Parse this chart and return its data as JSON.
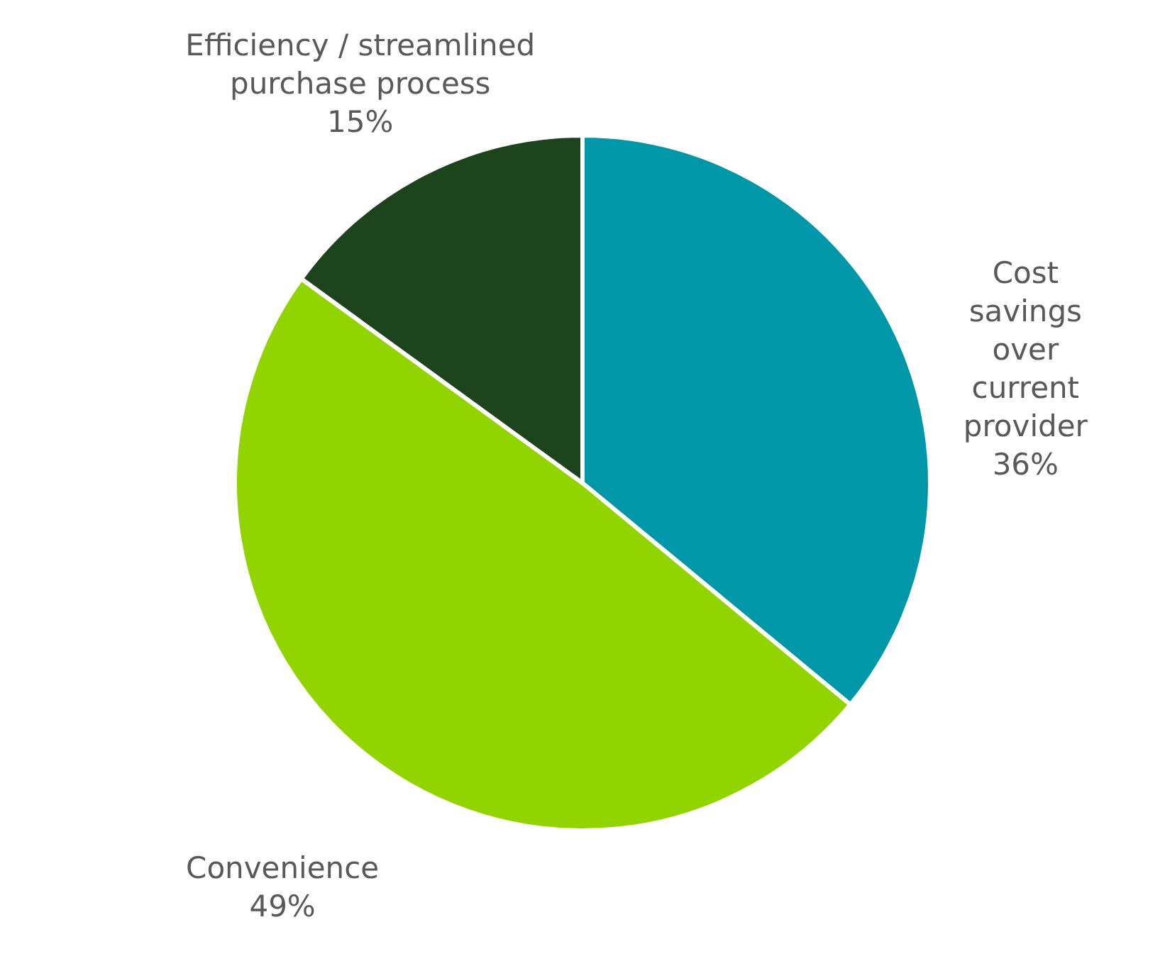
{
  "chart_data": {
    "type": "pie",
    "categories": [
      "Cost savings over current provider",
      "Convenience",
      "Efficiency / streamlined purchase process"
    ],
    "values": [
      36,
      49,
      15
    ],
    "value_labels": [
      "36%",
      "49%",
      "15%"
    ],
    "colors": [
      "#0097a9",
      "#92d400",
      "#1e441e"
    ]
  }
}
